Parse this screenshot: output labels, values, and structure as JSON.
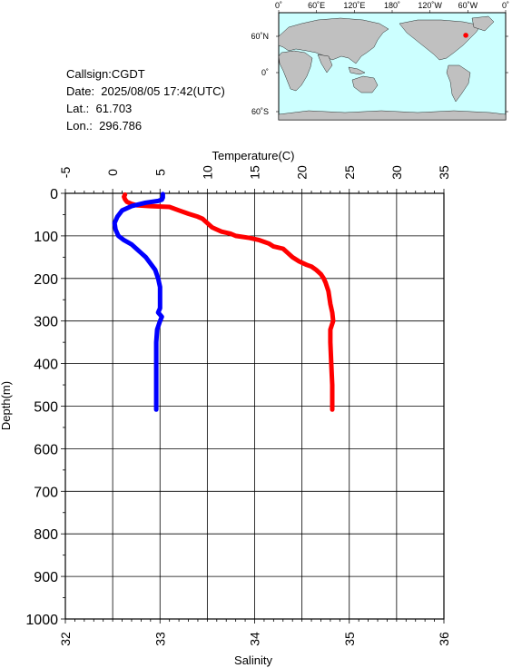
{
  "info": {
    "callsign": "Callsign:CGDT",
    "date": "Date:  2025/08/05 17:42(UTC)",
    "lat": "Lat.:  61.703",
    "lon": "Lon.:  296.786"
  },
  "map": {
    "lon_labels": [
      "0˚",
      "60˚E",
      "120˚E",
      "180˚",
      "120˚W",
      "60˚W",
      "0˚"
    ],
    "lat_labels": [
      "60˚N",
      "0˚",
      "60˚S"
    ],
    "station": {
      "lat": 61.703,
      "lon": 296.786
    },
    "colors": {
      "ocean": "#ccffff",
      "land": "#c0c0c0",
      "marker": "#ff0000"
    }
  },
  "chart_data": {
    "type": "line",
    "top_axis_label": "Temperature(C)",
    "bottom_axis_label": "Salinity",
    "left_axis_label": "Depth(m)",
    "temperature_ticks": [
      "-5",
      "0",
      "5",
      "10",
      "15",
      "20",
      "25",
      "30",
      "35"
    ],
    "salinity_ticks": [
      "32",
      "33",
      "34",
      "35",
      "36"
    ],
    "depth_ticks": [
      "0",
      "100",
      "200",
      "300",
      "400",
      "500",
      "600",
      "700",
      "800",
      "900",
      "1000"
    ],
    "temperature_range": [
      -5,
      35
    ],
    "salinity_range": [
      32,
      36
    ],
    "depth_range": [
      0,
      1000
    ],
    "grid": true,
    "series": [
      {
        "name": "Temperature(C)",
        "color": "#ff0000",
        "axis": "temperature",
        "points": [
          [
            1.3,
            3
          ],
          [
            1.2,
            8
          ],
          [
            1.3,
            14
          ],
          [
            1.5,
            20
          ],
          [
            2.0,
            25
          ],
          [
            2.5,
            28
          ],
          [
            4,
            30
          ],
          [
            6,
            32
          ],
          [
            7,
            40
          ],
          [
            8,
            48
          ],
          [
            9,
            55
          ],
          [
            9.5,
            60
          ],
          [
            10,
            70
          ],
          [
            10.5,
            80
          ],
          [
            11,
            85
          ],
          [
            11.5,
            90
          ],
          [
            12.5,
            95
          ],
          [
            13,
            100
          ],
          [
            14.5,
            105
          ],
          [
            15.5,
            110
          ],
          [
            16.5,
            118
          ],
          [
            17,
            125
          ],
          [
            18,
            130
          ],
          [
            18.5,
            140
          ],
          [
            19,
            150
          ],
          [
            19.7,
            160
          ],
          [
            20.5,
            168
          ],
          [
            21,
            172
          ],
          [
            21.5,
            180
          ],
          [
            22,
            190
          ],
          [
            22.3,
            200
          ],
          [
            22.5,
            210
          ],
          [
            22.8,
            230
          ],
          [
            23.0,
            260
          ],
          [
            23.2,
            280
          ],
          [
            23.3,
            300
          ],
          [
            23.0,
            320
          ],
          [
            23.0,
            350
          ],
          [
            23.1,
            400
          ],
          [
            23.2,
            450
          ],
          [
            23.2,
            500
          ],
          [
            23.2,
            508
          ]
        ]
      },
      {
        "name": "Salinity",
        "color": "#0000ff",
        "axis": "salinity",
        "points": [
          [
            33.03,
            2
          ],
          [
            33.03,
            10
          ],
          [
            33.02,
            15
          ],
          [
            32.98,
            18
          ],
          [
            32.85,
            22
          ],
          [
            32.7,
            30
          ],
          [
            32.6,
            40
          ],
          [
            32.55,
            55
          ],
          [
            32.52,
            70
          ],
          [
            32.53,
            85
          ],
          [
            32.56,
            100
          ],
          [
            32.62,
            110
          ],
          [
            32.7,
            120
          ],
          [
            32.75,
            130
          ],
          [
            32.8,
            140
          ],
          [
            32.85,
            150
          ],
          [
            32.9,
            165
          ],
          [
            32.95,
            180
          ],
          [
            32.98,
            200
          ],
          [
            33.0,
            220
          ],
          [
            33.0,
            250
          ],
          [
            33.0,
            270
          ],
          [
            32.98,
            280
          ],
          [
            33.02,
            290
          ],
          [
            33.0,
            300
          ],
          [
            32.97,
            320
          ],
          [
            32.96,
            350
          ],
          [
            32.96,
            400
          ],
          [
            32.96,
            450
          ],
          [
            32.96,
            500
          ],
          [
            32.96,
            508
          ]
        ]
      }
    ]
  }
}
